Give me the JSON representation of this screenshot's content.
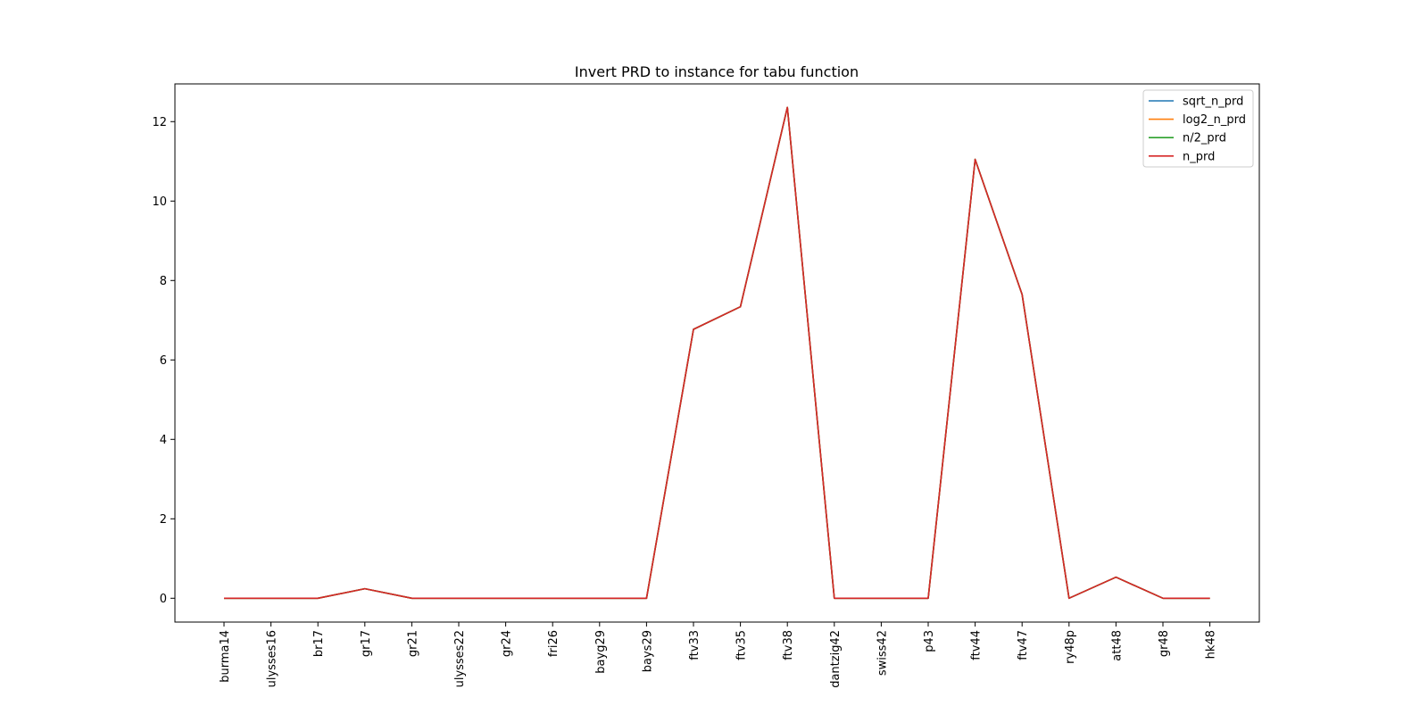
{
  "chart_data": {
    "type": "line",
    "title": "Invert PRD to instance for tabu function",
    "xlabel": "",
    "ylabel": "",
    "categories": [
      "burma14",
      "ulysses16",
      "br17",
      "gr17",
      "gr21",
      "ulysses22",
      "gr24",
      "fri26",
      "bayg29",
      "bays29",
      "ftv33",
      "ftv35",
      "ftv38",
      "dantzig42",
      "swiss42",
      "p43",
      "ftv44",
      "ftv47",
      "ry48p",
      "att48",
      "gr48",
      "hk48"
    ],
    "ylim": [
      -0.6,
      12.95
    ],
    "yticks": [
      0,
      2,
      4,
      6,
      8,
      10,
      12
    ],
    "grid": false,
    "legend_position": "top-right",
    "series": [
      {
        "name": "sqrt_n_prd",
        "color": "#1f77b4",
        "values": [
          0,
          0,
          0,
          0.24,
          0,
          0,
          0,
          0,
          0,
          0,
          6.77,
          7.34,
          12.36,
          0,
          0,
          0,
          11.05,
          7.65,
          0,
          0.53,
          0,
          0
        ]
      },
      {
        "name": "log2_n_prd",
        "color": "#ff7f0e",
        "values": [
          0,
          0,
          0,
          0.24,
          0,
          0,
          0,
          0,
          0,
          0,
          6.77,
          7.34,
          12.36,
          0,
          0,
          0,
          11.05,
          7.65,
          0,
          0.53,
          0,
          0
        ]
      },
      {
        "name": "n/2_prd",
        "color": "#2ca02c",
        "values": [
          0,
          0,
          0,
          0.24,
          0,
          0,
          0,
          0,
          0,
          0,
          6.77,
          7.34,
          12.36,
          0,
          0,
          0,
          11.05,
          7.65,
          0,
          0.53,
          0,
          0
        ]
      },
      {
        "name": "n_prd",
        "color": "#d62728",
        "values": [
          0,
          0,
          0,
          0.24,
          0,
          0,
          0,
          0,
          0,
          0,
          6.77,
          7.34,
          12.36,
          0,
          0,
          0,
          11.05,
          7.65,
          0,
          0.53,
          0,
          0
        ]
      }
    ]
  }
}
